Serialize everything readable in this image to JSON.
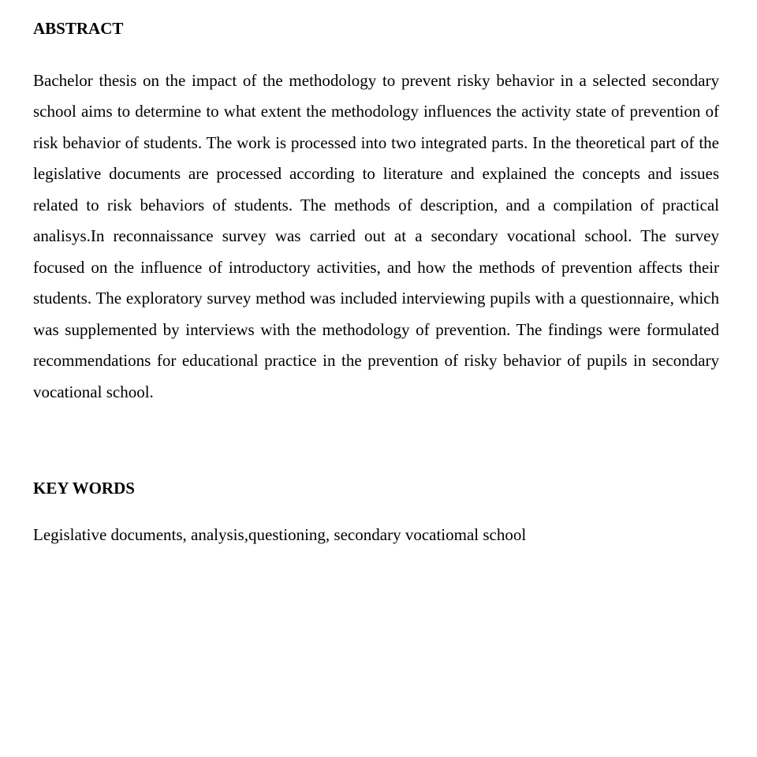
{
  "abstract": {
    "heading": "ABSTRACT",
    "body": "Bachelor thesis on the impact of the methodology to prevent risky behavior in a selected secondary school aims to determine to what extent the methodology influences the activity state of prevention of risk behavior of students. The work is processed into two integrated parts. In the theoretical part of the legislative documents are processed according to literature and explained the concepts and issues related to risk behaviors of students. The methods of description, and a compilation of practical analisys.In reconnaissance survey was carried out at a secondary vocational school. The survey focused on the influence of introductory activities, and how the methods of prevention affects their students. The exploratory survey method was included interviewing pupils with a questionnaire, which was supplemented by interviews with the methodology of prevention. The findings were formulated recommendations for educational practice in the prevention of risky behavior of pupils in secondary vocational school."
  },
  "keywords": {
    "heading": "KEY WORDS",
    "body": "Legislative documents, analysis,questioning, secondary vocatiomal school"
  },
  "style": {
    "font_family": "Times New Roman",
    "heading_font_size_pt": 16,
    "body_font_size_pt": 16,
    "heading_weight": "bold",
    "body_weight": "normal",
    "text_color": "#000000",
    "background_color": "#ffffff",
    "line_height": 1.88,
    "text_align": "justify"
  }
}
